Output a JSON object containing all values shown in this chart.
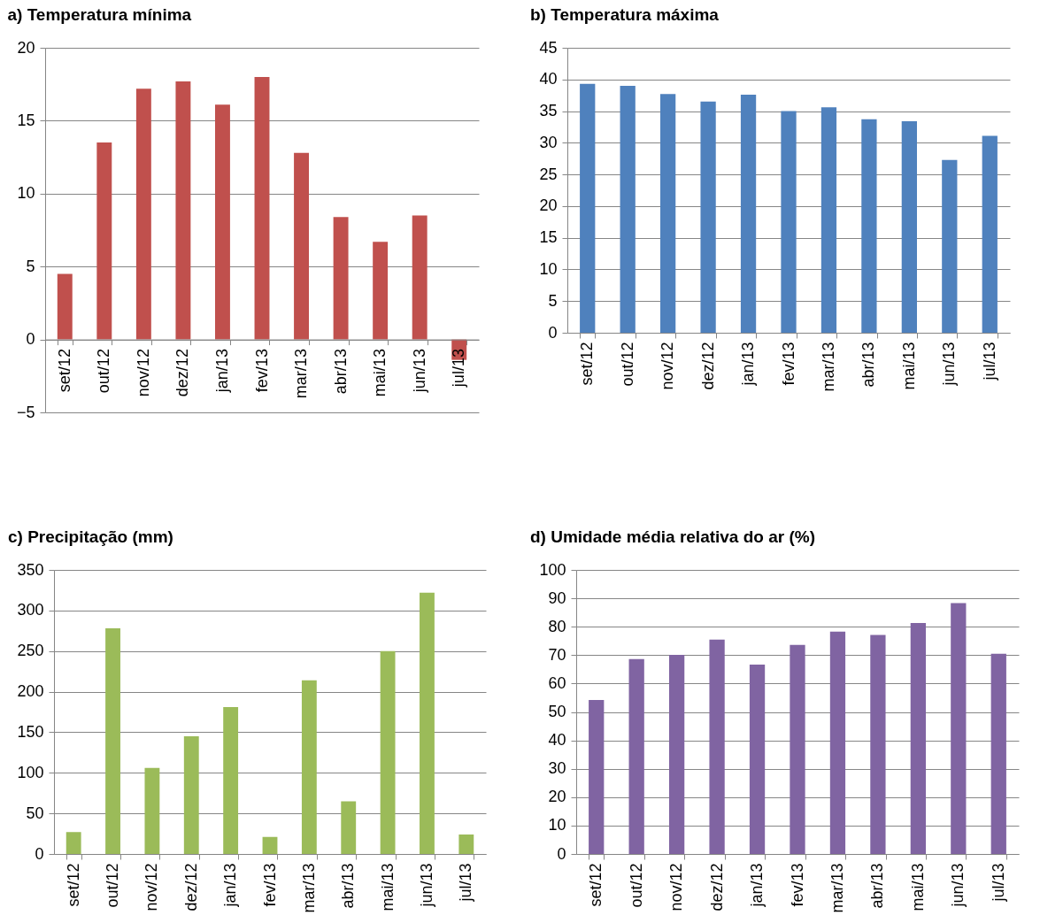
{
  "chart_data": [
    {
      "type": "bar",
      "title": "a)   Temperatura mínima",
      "categories": [
        "set/12",
        "out/12",
        "nov/12",
        "dez/12",
        "jan/13",
        "fev/13",
        "mar/13",
        "abr/13",
        "mai/13",
        "jun/13",
        "jul/13"
      ],
      "values": [
        4.5,
        13.5,
        17.2,
        17.7,
        16.1,
        18.0,
        12.8,
        8.4,
        6.7,
        8.5,
        -1.4
      ],
      "color": "#c0504d",
      "ylim": [
        -5,
        20
      ],
      "yticks": [
        -5,
        0,
        5,
        10,
        15,
        20
      ],
      "grid": "y"
    },
    {
      "type": "bar",
      "title": "b)   Temperatura máxima",
      "categories": [
        "set/12",
        "out/12",
        "nov/12",
        "dez/12",
        "jan/13",
        "fev/13",
        "mar/13",
        "abr/13",
        "mai/13",
        "jun/13",
        "jul/13"
      ],
      "values": [
        39.3,
        39.0,
        37.7,
        36.5,
        37.6,
        35.0,
        35.6,
        33.7,
        33.4,
        27.3,
        31.1
      ],
      "color": "#4f81bd",
      "ylim": [
        0,
        45
      ],
      "yticks": [
        0,
        5,
        10,
        15,
        20,
        25,
        30,
        35,
        40,
        45
      ],
      "grid": "y"
    },
    {
      "type": "bar",
      "title": "c)   Precipitação (mm)",
      "categories": [
        "set/12",
        "out/12",
        "nov/12",
        "dez/12",
        "jan/13",
        "fev/13",
        "mar/13",
        "abr/13",
        "mai/13",
        "jun/13",
        "jul/13"
      ],
      "values": [
        27,
        278,
        106,
        145,
        181,
        21,
        214,
        65,
        250,
        322,
        24
      ],
      "color": "#9bbb59",
      "ylim": [
        0,
        350
      ],
      "yticks": [
        0,
        50,
        100,
        150,
        200,
        250,
        300,
        350
      ],
      "grid": "y"
    },
    {
      "type": "bar",
      "title": "d)   Umidade média relativa do ar (%)",
      "categories": [
        "set/12",
        "out/12",
        "nov/12",
        "dez/12",
        "jan/13",
        "fev/13",
        "mar/13",
        "abr/13",
        "mai/13",
        "jun/13",
        "jul/13"
      ],
      "values": [
        54.2,
        68.6,
        70.1,
        75.5,
        66.7,
        73.6,
        78.3,
        77.1,
        81.3,
        88.3,
        70.5
      ],
      "color": "#8064a2",
      "ylim": [
        0,
        100
      ],
      "yticks": [
        0,
        10,
        20,
        30,
        40,
        50,
        60,
        70,
        80,
        90,
        100
      ],
      "grid": "y"
    }
  ]
}
